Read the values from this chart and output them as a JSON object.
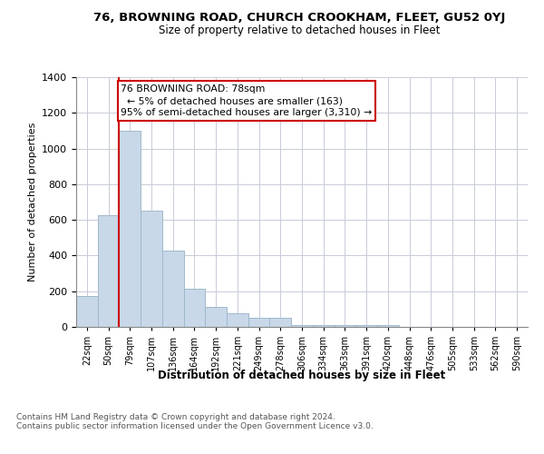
{
  "title": "76, BROWNING ROAD, CHURCH CROOKHAM, FLEET, GU52 0YJ",
  "subtitle": "Size of property relative to detached houses in Fleet",
  "xlabel": "Distribution of detached houses by size in Fleet",
  "ylabel": "Number of detached properties",
  "footnote": "Contains HM Land Registry data © Crown copyright and database right 2024.\nContains public sector information licensed under the Open Government Licence v3.0.",
  "bar_labels": [
    "22sqm",
    "50sqm",
    "79sqm",
    "107sqm",
    "136sqm",
    "164sqm",
    "192sqm",
    "221sqm",
    "249sqm",
    "278sqm",
    "306sqm",
    "334sqm",
    "363sqm",
    "391sqm",
    "420sqm",
    "448sqm",
    "476sqm",
    "505sqm",
    "533sqm",
    "562sqm",
    "590sqm"
  ],
  "bar_heights": [
    175,
    625,
    1100,
    650,
    430,
    215,
    110,
    75,
    50,
    50,
    10,
    10,
    10,
    10,
    10,
    0,
    0,
    0,
    0,
    0,
    0
  ],
  "bar_color": "#c8d8e8",
  "bar_edgecolor": "#a0b8cc",
  "annotation_line1": "76 BROWNING ROAD: 78sqm",
  "annotation_line2": "← 5% of detached houses are smaller (163)",
  "annotation_line3": "95% of semi-detached houses are larger (3,310) →",
  "annotation_box_color": "#cc0000",
  "vline_bin_index": 2,
  "ylim": [
    0,
    1400
  ],
  "yticks": [
    0,
    200,
    400,
    600,
    800,
    1000,
    1200,
    1400
  ],
  "background_color": "#ffffff",
  "grid_color": "#c8ccd8"
}
